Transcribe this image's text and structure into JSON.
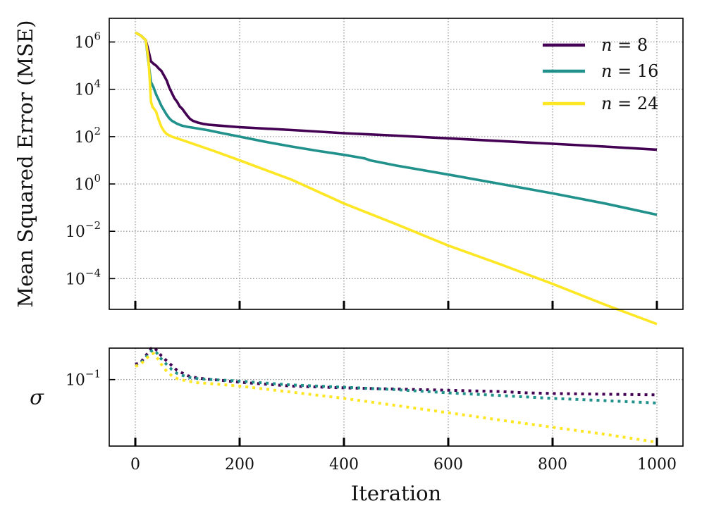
{
  "chart_data": [
    {
      "type": "line",
      "panel": "top",
      "title": "",
      "xlabel": "",
      "ylabel": "Mean Squared Error (MSE)",
      "yscale": "log",
      "xlim": [
        -50,
        1050
      ],
      "ylim_log10": [
        -5.3,
        7.0
      ],
      "grid": true,
      "legend_position": "top-right",
      "yticks": [
        {
          "value": 1000000.0,
          "base": "10",
          "exp": "6"
        },
        {
          "value": 10000.0,
          "base": "10",
          "exp": "4"
        },
        {
          "value": 100.0,
          "base": "10",
          "exp": "2"
        },
        {
          "value": 1,
          "base": "10",
          "exp": "0"
        },
        {
          "value": 0.01,
          "base": "10",
          "exp": "−2"
        },
        {
          "value": 0.0001,
          "base": "10",
          "exp": "−4"
        }
      ],
      "series": [
        {
          "name": "n = 8",
          "legend_var": "n",
          "legend_eq": " = 8",
          "color": "#440154",
          "x": [
            0,
            10,
            20,
            25,
            30,
            35,
            40,
            45,
            50,
            55,
            60,
            65,
            70,
            75,
            80,
            85,
            90,
            95,
            100,
            105,
            110,
            120,
            130,
            140,
            150,
            175,
            200,
            300,
            400,
            500,
            600,
            700,
            800,
            900,
            1000
          ],
          "y": [
            2500000,
            1900000,
            1200000,
            450000,
            150000,
            120000,
            100000,
            75000,
            60000,
            38000,
            24000,
            12000,
            7000,
            4200,
            3000,
            1900,
            1500,
            1050,
            750,
            560,
            470,
            390,
            345,
            320,
            305,
            275,
            250,
            190,
            140,
            110,
            85,
            65,
            50,
            38,
            28
          ]
        },
        {
          "name": "n = 16",
          "legend_var": "n",
          "legend_eq": " = 16",
          "color": "#21918c",
          "x": [
            0,
            10,
            20,
            25,
            30,
            35,
            40,
            45,
            50,
            55,
            60,
            65,
            70,
            80,
            90,
            100,
            120,
            140,
            160,
            200,
            250,
            300,
            350,
            400,
            440,
            450,
            500,
            600,
            700,
            800,
            900,
            1000
          ],
          "y": [
            2500000,
            1900000,
            1200000,
            150000,
            20000,
            12000,
            6000,
            3500,
            2000,
            1300,
            850,
            600,
            470,
            350,
            290,
            260,
            220,
            185,
            150,
            100,
            60,
            38,
            25,
            17,
            12,
            10,
            6,
            2.5,
            1.0,
            0.4,
            0.15,
            0.05
          ]
        },
        {
          "name": "n = 24",
          "legend_var": "n",
          "legend_eq": " = 24",
          "color": "#fde725",
          "x": [
            0,
            10,
            20,
            25,
            28,
            30,
            33,
            36,
            40,
            45,
            50,
            55,
            60,
            70,
            80,
            100,
            150,
            200,
            300,
            400,
            500,
            600,
            700,
            800,
            900,
            1000
          ],
          "y": [
            2500000,
            1900000,
            1200000,
            200000,
            20000,
            3000,
            1800,
            1500,
            1100,
            500,
            260,
            170,
            130,
            100,
            85,
            60,
            25,
            10,
            1.5,
            0.15,
            0.02,
            0.0025,
            0.0004,
            6e-05,
            8e-06,
            1.2e-06
          ]
        }
      ]
    },
    {
      "type": "line",
      "panel": "bottom",
      "title": "",
      "xlabel": "Iteration",
      "ylabel": "σ",
      "yscale": "log",
      "line_style": "dotted",
      "xlim": [
        -50,
        1050
      ],
      "ylim_log10": [
        -1.57,
        -0.73
      ],
      "grid": true,
      "xticks": [
        "0",
        "200",
        "400",
        "600",
        "800",
        "1000"
      ],
      "xtick_values": [
        0,
        200,
        400,
        600,
        800,
        1000
      ],
      "yticks": [
        {
          "value": 0.1,
          "base": "10",
          "exp": "−1"
        }
      ],
      "series": [
        {
          "name": "n = 8",
          "color": "#440154",
          "x": [
            0,
            10,
            20,
            30,
            35,
            40,
            50,
            60,
            70,
            80,
            100,
            120,
            150,
            200,
            300,
            400,
            500,
            600,
            700,
            750,
            800,
            900,
            1000
          ],
          "y": [
            0.135,
            0.14,
            0.16,
            0.185,
            0.19,
            0.18,
            0.16,
            0.145,
            0.132,
            0.12,
            0.108,
            0.103,
            0.1,
            0.095,
            0.088,
            0.085,
            0.083,
            0.081,
            0.079,
            0.077,
            0.076,
            0.075,
            0.074
          ]
        },
        {
          "name": "n = 16",
          "color": "#21918c",
          "x": [
            0,
            10,
            20,
            30,
            35,
            40,
            50,
            60,
            70,
            80,
            100,
            120,
            150,
            200,
            300,
            400,
            500,
            600,
            700,
            800,
            900,
            1000
          ],
          "y": [
            0.13,
            0.138,
            0.155,
            0.175,
            0.18,
            0.172,
            0.15,
            0.135,
            0.122,
            0.113,
            0.105,
            0.102,
            0.1,
            0.097,
            0.09,
            0.086,
            0.082,
            0.077,
            0.073,
            0.069,
            0.066,
            0.063
          ]
        },
        {
          "name": "n = 24",
          "color": "#fde725",
          "x": [
            0,
            10,
            20,
            30,
            35,
            40,
            50,
            60,
            70,
            80,
            100,
            120,
            150,
            200,
            300,
            400,
            500,
            600,
            700,
            800,
            900,
            1000
          ],
          "y": [
            0.13,
            0.135,
            0.15,
            0.165,
            0.168,
            0.158,
            0.135,
            0.118,
            0.108,
            0.102,
            0.097,
            0.094,
            0.092,
            0.088,
            0.078,
            0.069,
            0.06,
            0.052,
            0.045,
            0.039,
            0.034,
            0.029
          ]
        }
      ]
    }
  ]
}
